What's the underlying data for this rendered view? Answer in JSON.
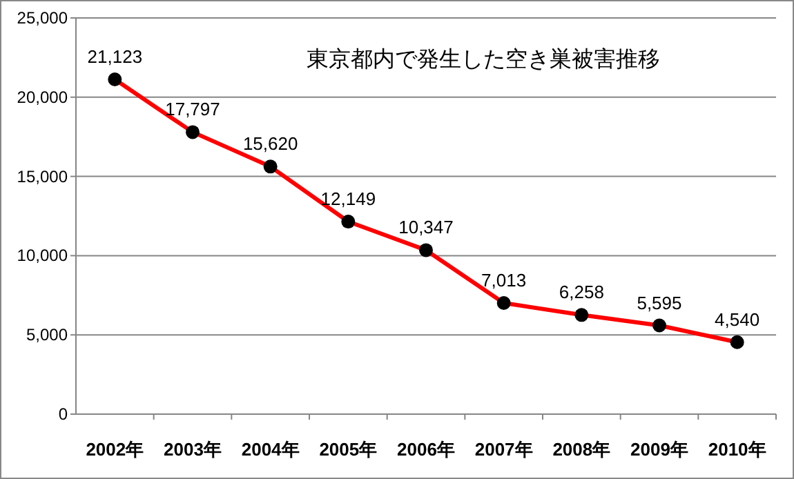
{
  "chart_data": {
    "type": "line",
    "title": "東京都内で発生した空き巣被害推移",
    "categories": [
      "2002年",
      "2003年",
      "2004年",
      "2005年",
      "2006年",
      "2007年",
      "2008年",
      "2009年",
      "2010年"
    ],
    "series": [
      {
        "color": "#ff0000",
        "values": [
          21123,
          17797,
          15620,
          12149,
          10347,
          7013,
          6258,
          5595,
          4540
        ],
        "value_labels": [
          "21,123",
          "17,797",
          "15,620",
          "12,149",
          "10,347",
          "7,013",
          "6,258",
          "5,595",
          "4,540"
        ]
      }
    ],
    "ylim": [
      0,
      25000
    ],
    "yticks": [
      {
        "value": 0,
        "label": "0"
      },
      {
        "value": 5000,
        "label": "5,000"
      },
      {
        "value": 10000,
        "label": "10,000"
      },
      {
        "value": 15000,
        "label": "15,000"
      },
      {
        "value": 20000,
        "label": "20,000"
      },
      {
        "value": 25000,
        "label": "25,000"
      }
    ],
    "grid": "y",
    "marker": "circle",
    "line_style": "solid"
  }
}
